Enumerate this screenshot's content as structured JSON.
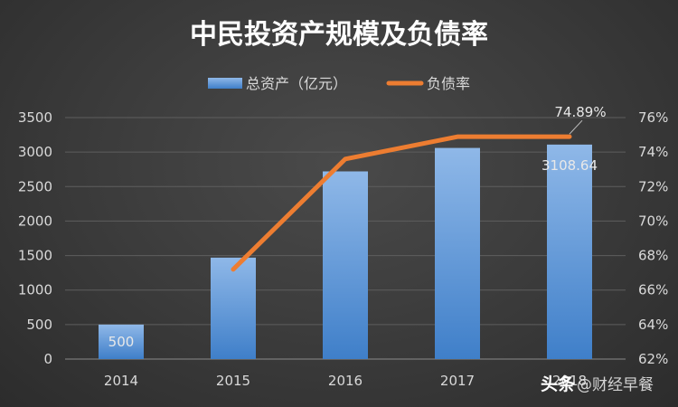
{
  "chart_data": {
    "type": "bar",
    "title": "中民投资产规模及负债率",
    "categories": [
      "2014",
      "2015",
      "2016",
      "2017",
      "2018"
    ],
    "series": [
      {
        "name": "总资产（亿元）",
        "type": "bar",
        "axis": "left",
        "color": "#5b9bd5",
        "values": [
          500,
          1470,
          2720,
          3060,
          3108.64
        ]
      },
      {
        "name": "负债率",
        "type": "line",
        "axis": "right",
        "color": "#ed7d31",
        "values": [
          null,
          67.2,
          73.6,
          74.89,
          74.89
        ]
      }
    ],
    "y_left": {
      "min": 0,
      "max": 3500,
      "step": 500,
      "ticks": [
        "0",
        "500",
        "1000",
        "1500",
        "2000",
        "2500",
        "3000",
        "3500"
      ]
    },
    "y_right": {
      "min": 62,
      "max": 76,
      "step": 2,
      "ticks": [
        "62%",
        "64%",
        "66%",
        "68%",
        "70%",
        "72%",
        "74%",
        "76%"
      ]
    },
    "x_ticks": [
      "2014",
      "2015",
      "2016",
      "2017",
      "2018"
    ],
    "data_labels": [
      {
        "series": 0,
        "index": 0,
        "text": "500"
      },
      {
        "series": 0,
        "index": 4,
        "text": "3108.64"
      },
      {
        "series": 1,
        "index": 4,
        "text": "74.89%"
      }
    ],
    "legend": {
      "position": "top",
      "entries": [
        {
          "label": "总资产（亿元）",
          "color": "#5b9bd5"
        },
        {
          "label": "负债率",
          "color": "#ed7d31"
        }
      ]
    },
    "grid": true
  },
  "watermark": {
    "prefix": "头条",
    "text": "@财经早餐"
  }
}
